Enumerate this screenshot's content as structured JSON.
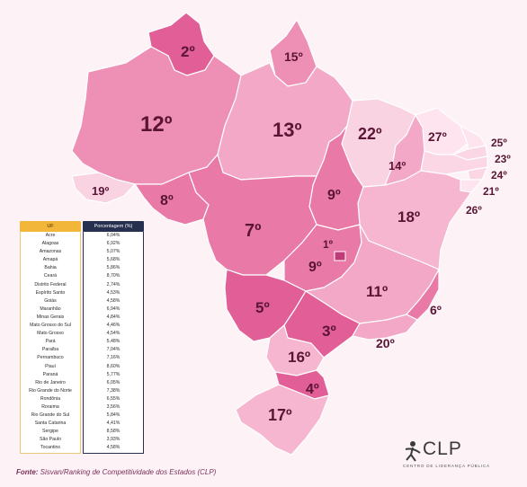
{
  "map": {
    "ranks": {
      "rr": "2º",
      "ap": "15º",
      "am": "12º",
      "pa": "13º",
      "ma": "22º",
      "ce": "27º",
      "rn": "25º",
      "pb": "23º",
      "pe": "24º",
      "al": "21º",
      "se": "26º",
      "pi": "14º",
      "ac": "19º",
      "ro": "8º",
      "mt": "7º",
      "to": "9º",
      "ba": "18º",
      "df": "1º",
      "go": "9º",
      "mg": "11º",
      "es": "6º",
      "ms": "5º",
      "sp": "3º",
      "rj": "20º",
      "pr": "16º",
      "sc": "4º",
      "rs": "17º"
    },
    "colors": {
      "dark": "#e25e97",
      "mid": "#ee8fb5",
      "light": "#f6b6cf",
      "lighter": "#fad3e2",
      "label": "#5a1535",
      "label_light": "#ffffff"
    }
  },
  "table": {
    "header_uf": "UF",
    "header_pct": "Porcentagem (%)",
    "rows": [
      {
        "uf": "Acre",
        "pct": "6,04%"
      },
      {
        "uf": "Alagoas",
        "pct": "6,92%"
      },
      {
        "uf": "Amazonas",
        "pct": "5,07%"
      },
      {
        "uf": "Amapá",
        "pct": "5,68%"
      },
      {
        "uf": "Bahia",
        "pct": "5,86%"
      },
      {
        "uf": "Ceará",
        "pct": "8,70%"
      },
      {
        "uf": "Distrito Federal",
        "pct": "2,74%"
      },
      {
        "uf": "Espírito Santo",
        "pct": "4,53%"
      },
      {
        "uf": "Goiás",
        "pct": "4,58%"
      },
      {
        "uf": "Maranhão",
        "pct": "6,94%"
      },
      {
        "uf": "Minas Gerais",
        "pct": "4,84%"
      },
      {
        "uf": "Mato Grosso do Sul",
        "pct": "4,46%"
      },
      {
        "uf": "Mato Grosso",
        "pct": "4,54%"
      },
      {
        "uf": "Pará",
        "pct": "5,48%"
      },
      {
        "uf": "Paraíba",
        "pct": "7,04%"
      },
      {
        "uf": "Pernambuco",
        "pct": "7,16%"
      },
      {
        "uf": "Piauí",
        "pct": "8,60%"
      },
      {
        "uf": "Paraná",
        "pct": "5,77%"
      },
      {
        "uf": "Rio de Janeiro",
        "pct": "6,05%"
      },
      {
        "uf": "Rio Grande do Norte",
        "pct": "7,38%"
      },
      {
        "uf": "Rondônia",
        "pct": "6,55%"
      },
      {
        "uf": "Roraima",
        "pct": "3,56%"
      },
      {
        "uf": "Rio Grande do Sul",
        "pct": "5,84%"
      },
      {
        "uf": "Santa Catarina",
        "pct": "4,41%"
      },
      {
        "uf": "Sergipe",
        "pct": "8,58%"
      },
      {
        "uf": "São Paulo",
        "pct": "3,93%"
      },
      {
        "uf": "Tocantins",
        "pct": "4,58%"
      }
    ]
  },
  "source": {
    "label": "Fonte:",
    "text": "Sisvan/Ranking de Competitividade dos Estados (CLP)"
  },
  "logo": {
    "word": "CLP",
    "subtitle": "CENTRO DE LIDERANÇA PÚBLICA"
  }
}
